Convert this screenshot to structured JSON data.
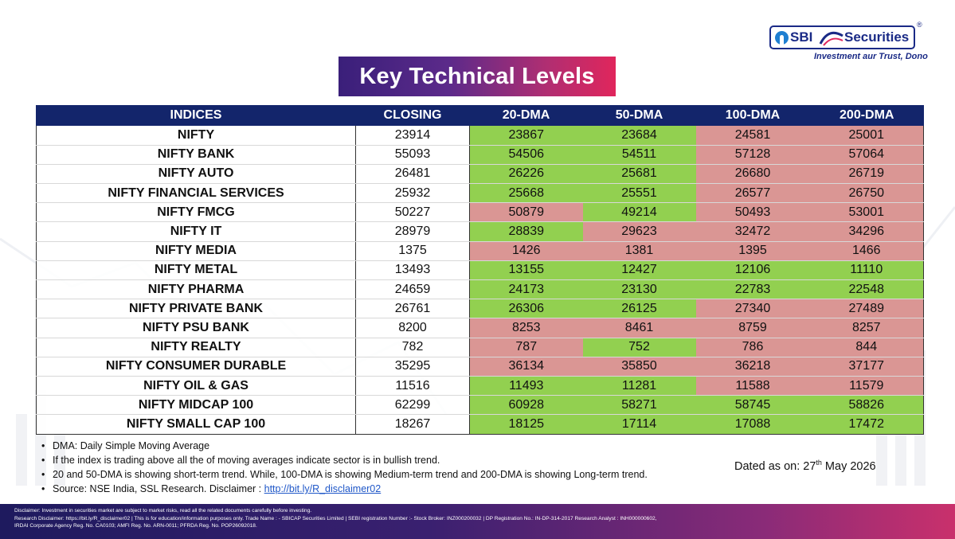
{
  "logo": {
    "brand_a": "SBI",
    "brand_b": "Securities",
    "registered_mark": "®",
    "tagline": "Investment aur Trust, Dono"
  },
  "title": "Key Technical Levels",
  "table": {
    "headers": [
      "INDICES",
      "CLOSING",
      "20-DMA",
      "50-DMA",
      "100-DMA",
      "200-DMA"
    ],
    "rows": [
      {
        "index": "NIFTY",
        "closing": "23914",
        "dma20": "23867",
        "dma50": "23684",
        "dma100": "24581",
        "dma200": "25001"
      },
      {
        "index": "NIFTY BANK",
        "closing": "55093",
        "dma20": "54506",
        "dma50": "54511",
        "dma100": "57128",
        "dma200": "57064"
      },
      {
        "index": "NIFTY AUTO",
        "closing": "26481",
        "dma20": "26226",
        "dma50": "25681",
        "dma100": "26680",
        "dma200": "26719"
      },
      {
        "index": "NIFTY FINANCIAL SERVICES",
        "closing": "25932",
        "dma20": "25668",
        "dma50": "25551",
        "dma100": "26577",
        "dma200": "26750"
      },
      {
        "index": "NIFTY FMCG",
        "closing": "50227",
        "dma20": "50879",
        "dma50": "49214",
        "dma100": "50493",
        "dma200": "53001"
      },
      {
        "index": "NIFTY IT",
        "closing": "28979",
        "dma20": "28839",
        "dma50": "29623",
        "dma100": "32472",
        "dma200": "34296"
      },
      {
        "index": "NIFTY MEDIA",
        "closing": "1375",
        "dma20": "1426",
        "dma50": "1381",
        "dma100": "1395",
        "dma200": "1466"
      },
      {
        "index": "NIFTY METAL",
        "closing": "13493",
        "dma20": "13155",
        "dma50": "12427",
        "dma100": "12106",
        "dma200": "11110"
      },
      {
        "index": "NIFTY PHARMA",
        "closing": "24659",
        "dma20": "24173",
        "dma50": "23130",
        "dma100": "22783",
        "dma200": "22548"
      },
      {
        "index": "NIFTY PRIVATE BANK",
        "closing": "26761",
        "dma20": "26306",
        "dma50": "26125",
        "dma100": "27340",
        "dma200": "27489"
      },
      {
        "index": "NIFTY PSU BANK",
        "closing": "8200",
        "dma20": "8253",
        "dma50": "8461",
        "dma100": "8759",
        "dma200": "8257"
      },
      {
        "index": "NIFTY REALTY",
        "closing": "782",
        "dma20": "787",
        "dma50": "752",
        "dma100": "786",
        "dma200": "844"
      },
      {
        "index": "NIFTY CONSUMER DURABLE",
        "closing": "35295",
        "dma20": "36134",
        "dma50": "35850",
        "dma100": "36218",
        "dma200": "37177"
      },
      {
        "index": "NIFTY OIL & GAS",
        "closing": "11516",
        "dma20": "11493",
        "dma50": "11281",
        "dma100": "11588",
        "dma200": "11579"
      },
      {
        "index": "NIFTY MIDCAP 100",
        "closing": "62299",
        "dma20": "60928",
        "dma50": "58271",
        "dma100": "58745",
        "dma200": "58826"
      },
      {
        "index": "NIFTY SMALL CAP 100",
        "closing": "18267",
        "dma20": "18125",
        "dma50": "17114",
        "dma100": "17088",
        "dma200": "17472"
      }
    ]
  },
  "colors": {
    "above_average": "#92d050",
    "below_average": "#da9694",
    "header_bg": "#13256b"
  },
  "notes": {
    "dma": "DMA: Daily Simple Moving Average",
    "bullish": "If the index is trading above all the of moving averages indicate sector is in bullish trend.",
    "trend": "20 and 50-DMA is showing short-term trend. While, 100-DMA is showing Medium-term trend and 200-DMA is showing Long-term trend.",
    "source_prefix": "Source: NSE India, SSL Research. Disclaimer : ",
    "source_link": "http://bit.ly/R_disclaimer02"
  },
  "dated": {
    "prefix": "Dated as on: 27",
    "suffix": "th",
    "rest": " May 2026"
  },
  "footer": {
    "line1": "Disclaimer: Investment in securities market are subject to market risks, read all the related documents carefully before investing.",
    "line2": "Research Disclaimer: https://bit.ly/R_disclaimer02 | This is for education/information purposes only. Trade Name : - SBICAP Securities Limited | SEBI registration Number :- Stock Broker: INZ000200032 | DP Registration No.: IN-DP-314-2017 Research Analyst : INH000000602,",
    "line3": "IRDAI Corporate Agency Reg. No. CA0103; AMFI Reg. No. ARN-0011; PFRDA Reg. No. POP26092018."
  }
}
